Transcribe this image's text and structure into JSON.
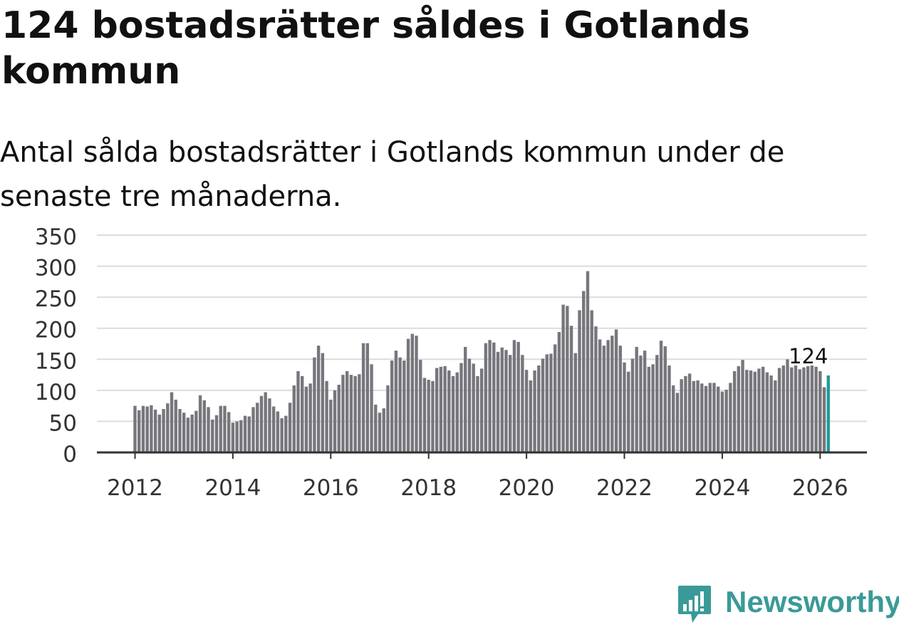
{
  "title": "124 bostadsrätter såldes i Gotlands kommun",
  "subtitle": "Antal sålda bostadsrätter i Gotlands kommun under de senaste tre månaderna.",
  "brand": {
    "name": "Newsworthy",
    "icon": "newsworthy-logo-icon",
    "color": "#3a9a98"
  },
  "chart_data": {
    "type": "bar",
    "x_start": "2012-01",
    "y_ticks": [
      "0",
      "50",
      "100",
      "150",
      "200",
      "250",
      "300",
      "350"
    ],
    "x_ticks": [
      "2012",
      "2014",
      "2016",
      "2018",
      "2020",
      "2022",
      "2024",
      "2026"
    ],
    "ylim": [
      0,
      350
    ],
    "grid": true,
    "bar_color": "#77767d",
    "highlight_color": "#1f9a99",
    "highlight_last": true,
    "annotation": {
      "label": "124",
      "value": 124
    },
    "values": [
      75,
      68,
      75,
      74,
      76,
      69,
      61,
      70,
      79,
      97,
      85,
      70,
      64,
      56,
      61,
      67,
      92,
      84,
      73,
      53,
      60,
      75,
      75,
      65,
      48,
      50,
      52,
      59,
      58,
      73,
      80,
      91,
      97,
      87,
      74,
      66,
      55,
      59,
      80,
      108,
      131,
      123,
      106,
      111,
      153,
      172,
      160,
      115,
      85,
      100,
      109,
      125,
      131,
      125,
      123,
      126,
      176,
      176,
      142,
      77,
      64,
      71,
      108,
      148,
      164,
      153,
      148,
      183,
      191,
      188,
      149,
      120,
      117,
      115,
      136,
      138,
      139,
      132,
      123,
      129,
      144,
      170,
      151,
      143,
      123,
      135,
      176,
      181,
      177,
      162,
      169,
      165,
      157,
      181,
      178,
      157,
      133,
      116,
      132,
      140,
      151,
      158,
      159,
      174,
      194,
      238,
      236,
      204,
      160,
      229,
      260,
      292,
      229,
      203,
      182,
      172,
      181,
      188,
      198,
      172,
      145,
      130,
      151,
      170,
      156,
      164,
      138,
      142,
      157,
      180,
      171,
      140,
      108,
      96,
      118,
      123,
      127,
      115,
      116,
      111,
      107,
      112,
      112,
      106,
      98,
      101,
      112,
      131,
      139,
      149,
      133,
      132,
      130,
      135,
      138,
      129,
      124,
      116,
      136,
      140,
      150,
      137,
      140,
      134,
      137,
      139,
      143,
      138,
      131,
      105,
      124
    ]
  }
}
